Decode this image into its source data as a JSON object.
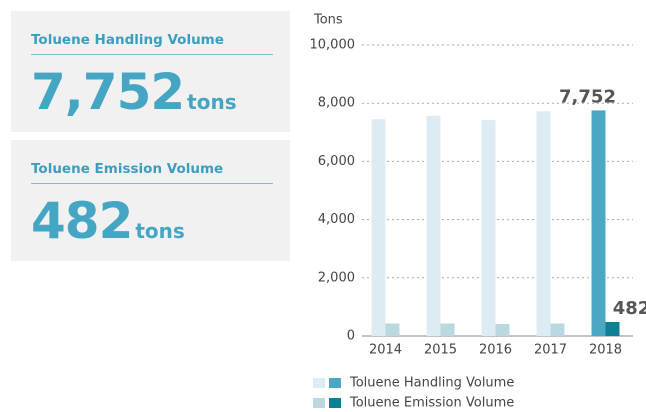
{
  "panels": [
    {
      "title": "Toluene Handling Volume",
      "value": "7,752",
      "unit": "tons"
    },
    {
      "title": "Toluene Emission Volume",
      "value": "482",
      "unit": "tons"
    }
  ],
  "chart_data": {
    "type": "bar",
    "y_label": "Tons",
    "categories": [
      "2014",
      "2015",
      "2016",
      "2017",
      "2018"
    ],
    "series": [
      {
        "name": "Toluene Handling Volume",
        "color": "#4aa8c4",
        "light_color": "#dcecf2",
        "values": [
          7450,
          7570,
          7420,
          7720,
          7752
        ],
        "value_labels": [
          null,
          null,
          null,
          null,
          "7,752"
        ]
      },
      {
        "name": "Toluene Emission Volume",
        "color": "#0e7f95",
        "light_color": "#b9d8df",
        "values": [
          430,
          430,
          410,
          430,
          482
        ],
        "value_labels": [
          null,
          null,
          null,
          null,
          "482"
        ]
      }
    ],
    "highlight_index": 4,
    "ylim": [
      0,
      10000
    ],
    "yticks": [
      0,
      {
        "value": 2000,
        "label": "2,000"
      },
      {
        "value": 4000,
        "label": "4,000"
      },
      {
        "value": 6000,
        "label": "6,000"
      },
      {
        "value": 8000,
        "label": "8,000"
      },
      {
        "value": 10000,
        "label": "10,000"
      }
    ],
    "grid": true
  }
}
